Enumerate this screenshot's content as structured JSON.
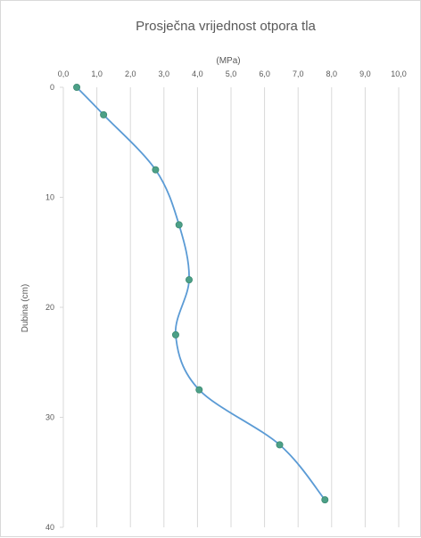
{
  "chart_data": {
    "type": "scatter",
    "title": "Prosječna vrijednost otpora tla",
    "xlabel": "(MPa)",
    "ylabel": "Dubina (cm)",
    "x_axis_position": "top",
    "y_axis_reversed": true,
    "xlim": [
      0,
      10
    ],
    "ylim": [
      0,
      40
    ],
    "x_ticks": [
      "0,0",
      "1,0",
      "2,0",
      "3,0",
      "4,0",
      "5,0",
      "6,0",
      "7,0",
      "8,0",
      "9,0",
      "10,0"
    ],
    "y_ticks": [
      "0",
      "10",
      "20",
      "30",
      "40"
    ],
    "grid": "vertical",
    "line_style": "smoothed",
    "colors": {
      "line": "#5b9bd5",
      "marker": "#4ca087",
      "grid": "#d9d9d9"
    },
    "series": [
      {
        "x": [
          0.4,
          1.2,
          2.75,
          3.45,
          3.75,
          3.35,
          4.05,
          6.45,
          7.8
        ],
        "y": [
          0,
          2.5,
          7.5,
          12.5,
          17.5,
          22.5,
          27.5,
          32.5,
          37.5
        ]
      }
    ]
  }
}
